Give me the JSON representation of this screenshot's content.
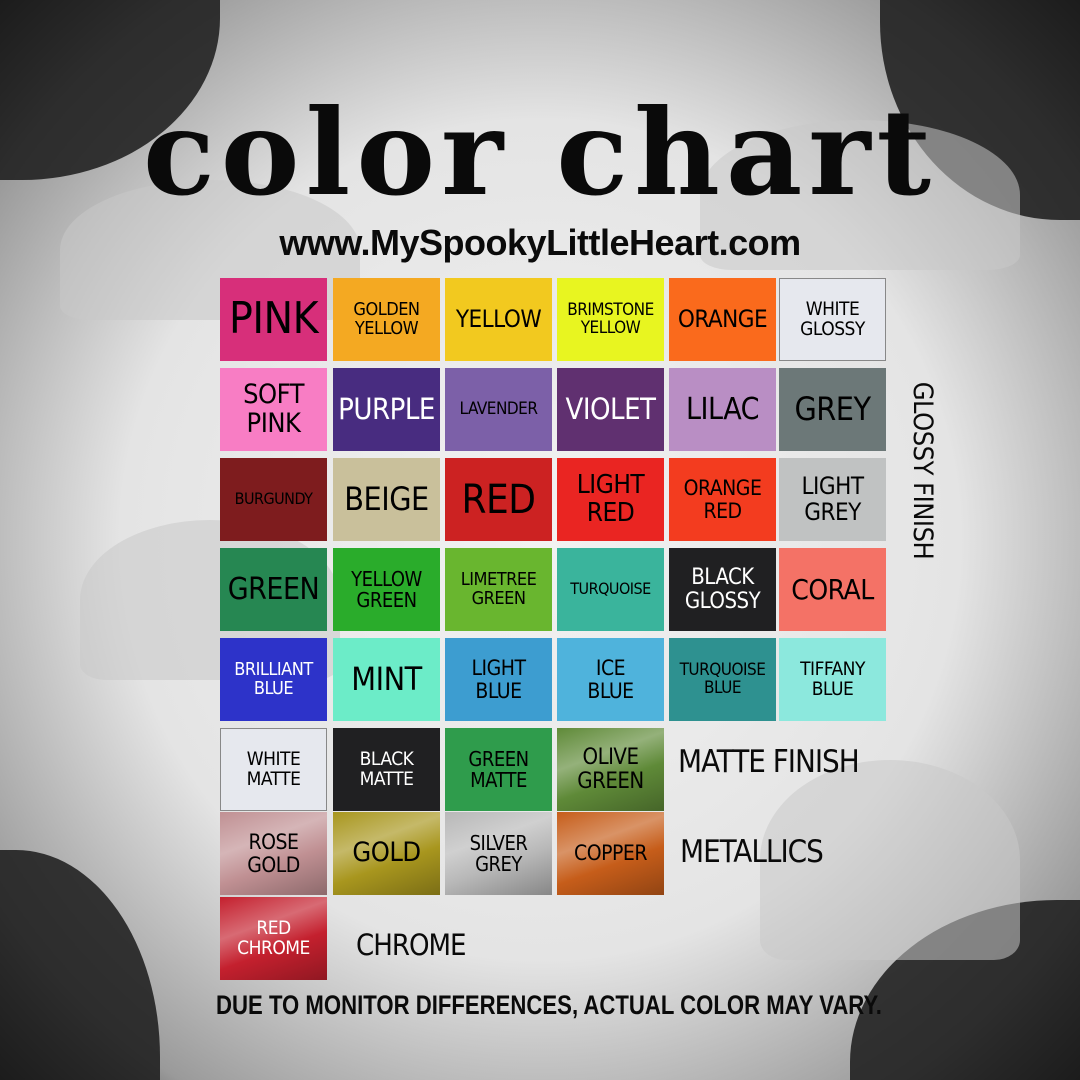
{
  "header": {
    "title": "color chart",
    "url": "www.MySpookyLittleHeart.com"
  },
  "glossy_label": "GLOSSY FINISH",
  "glossy": [
    {
      "label": "PINK",
      "bg": "#d72f7a",
      "fg": "#000000",
      "size": 44
    },
    {
      "label": "GOLDEN\nYELLOW",
      "bg": "#f4a922",
      "fg": "#000000",
      "size": 18
    },
    {
      "label": "YELLOW",
      "bg": "#f2c91f",
      "fg": "#000000",
      "size": 24
    },
    {
      "label": "BRIMSTONE\nYELLOW",
      "bg": "#e8f520",
      "fg": "#000000",
      "size": 17
    },
    {
      "label": "ORANGE",
      "bg": "#fa6a1c",
      "fg": "#000000",
      "size": 24
    },
    {
      "label": "WHITE\nGLOSSY",
      "bg": "#e6e8ee",
      "fg": "#000000",
      "size": 19
    },
    {
      "label": "SOFT\nPINK",
      "bg": "#f87dc4",
      "fg": "#000000",
      "size": 27
    },
    {
      "label": "PURPLE",
      "bg": "#482c80",
      "fg": "#ffffff",
      "size": 29
    },
    {
      "label": "LAVENDER",
      "bg": "#7c60a8",
      "fg": "#000000",
      "size": 17
    },
    {
      "label": "VIOLET",
      "bg": "#603070",
      "fg": "#ffffff",
      "size": 29
    },
    {
      "label": "LILAC",
      "bg": "#b98ec4",
      "fg": "#000000",
      "size": 30
    },
    {
      "label": "GREY",
      "bg": "#6c7878",
      "fg": "#000000",
      "size": 32
    },
    {
      "label": "BURGUNDY",
      "bg": "#7e1c1e",
      "fg": "#000000",
      "size": 16
    },
    {
      "label": "BEIGE",
      "bg": "#c9c09b",
      "fg": "#000000",
      "size": 32
    },
    {
      "label": "RED",
      "bg": "#cc2222",
      "fg": "#000000",
      "size": 40
    },
    {
      "label": "LIGHT\nRED",
      "bg": "#ea2522",
      "fg": "#000000",
      "size": 26
    },
    {
      "label": "ORANGE\nRED",
      "bg": "#f33c1f",
      "fg": "#000000",
      "size": 21
    },
    {
      "label": "LIGHT\nGREY",
      "bg": "#c0c2c2",
      "fg": "#000000",
      "size": 24
    },
    {
      "label": "GREEN",
      "bg": "#268752",
      "fg": "#000000",
      "size": 30
    },
    {
      "label": "YELLOW\nGREEN",
      "bg": "#2aac2b",
      "fg": "#000000",
      "size": 20
    },
    {
      "label": "LIMETREE\nGREEN",
      "bg": "#69b62f",
      "fg": "#000000",
      "size": 18
    },
    {
      "label": "TURQUOISE",
      "bg": "#3ab49c",
      "fg": "#000000",
      "size": 16
    },
    {
      "label": "BLACK\nGLOSSY",
      "bg": "#202022",
      "fg": "#ffffff",
      "size": 22
    },
    {
      "label": "CORAL",
      "bg": "#f47266",
      "fg": "#000000",
      "size": 28
    },
    {
      "label": "BRILLIANT\nBLUE",
      "bg": "#2d33c9",
      "fg": "#ffffff",
      "size": 18
    },
    {
      "label": "MINT",
      "bg": "#6cecc8",
      "fg": "#000000",
      "size": 32
    },
    {
      "label": "LIGHT\nBLUE",
      "bg": "#3d9dd0",
      "fg": "#000000",
      "size": 21
    },
    {
      "label": "ICE\nBLUE",
      "bg": "#4fb3dc",
      "fg": "#000000",
      "size": 21
    },
    {
      "label": "TURQUOISE\nBLUE",
      "bg": "#2e9190",
      "fg": "#000000",
      "size": 17
    },
    {
      "label": "TIFFANY\nBLUE",
      "bg": "#8ce8dd",
      "fg": "#000000",
      "size": 19
    }
  ],
  "matte_label": "MATTE FINISH",
  "matte": [
    {
      "label": "WHITE\nMATTE",
      "bg": "#e6e8ee",
      "fg": "#000000",
      "size": 19
    },
    {
      "label": "BLACK\nMATTE",
      "bg": "#202022",
      "fg": "#ffffff",
      "size": 19
    },
    {
      "label": "GREEN\nMATTE",
      "bg": "#2f9c4c",
      "fg": "#000000",
      "size": 20
    },
    {
      "label": "OLIVE\nGREEN",
      "bg": "#5f8a38",
      "fg": "#000000",
      "size": 22
    }
  ],
  "metallic_label": "METALLICS",
  "metallic": [
    {
      "label": "ROSE\nGOLD",
      "bg": "#c09093",
      "fg": "#000000",
      "size": 21
    },
    {
      "label": "GOLD",
      "bg": "#a8961e",
      "fg": "#000000",
      "size": 27
    },
    {
      "label": "SILVER\nGREY",
      "bg": "#b8b8b8",
      "fg": "#000000",
      "size": 20
    },
    {
      "label": "COPPER",
      "bg": "#c65d1a",
      "fg": "#000000",
      "size": 21
    }
  ],
  "chrome_label": "CHROME",
  "chrome": [
    {
      "label": "RED\nCHROME",
      "bg": "#c4202e",
      "fg": "#ffffff",
      "size": 19
    }
  ],
  "disclaimer": "DUE TO MONITOR DIFFERENCES, ACTUAL COLOR MAY VARY."
}
